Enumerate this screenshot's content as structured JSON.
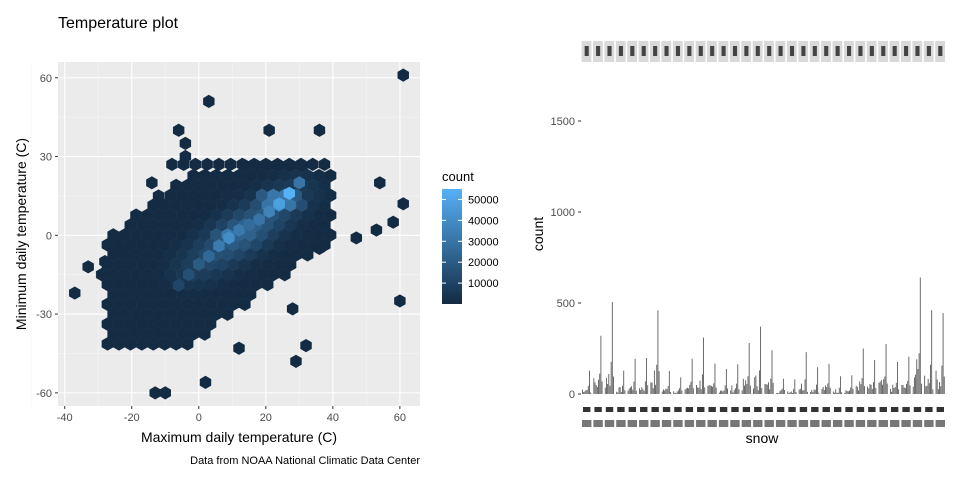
{
  "chart_data": [
    {
      "type": "heatmap",
      "subtype": "hexbin",
      "title": "Temperature plot",
      "xlabel": "Maximum daily temperature (C)",
      "ylabel": "Minimum daily temperature (C)",
      "caption": "Data from NOAA National Climatic Data Center",
      "xlim": [
        -42,
        66
      ],
      "ylim": [
        -65,
        66
      ],
      "x_ticks": [
        -40,
        -20,
        0,
        20,
        40,
        60
      ],
      "y_ticks": [
        -60,
        -30,
        0,
        30,
        60
      ],
      "grid": true,
      "panel_background": "#ebebeb",
      "legend": {
        "title": "count",
        "placement": "right",
        "ticks": [
          10000,
          20000,
          30000,
          40000,
          50000
        ],
        "range": [
          1,
          55000
        ],
        "color_low": "#132b43",
        "color_high": "#56b1f7"
      },
      "points": [
        {
          "x": 61,
          "y": 61,
          "c": 1
        },
        {
          "x": 3,
          "y": 51,
          "c": 1
        },
        {
          "x": -6,
          "y": 40,
          "c": 1
        },
        {
          "x": -4,
          "y": 35,
          "c": 1
        },
        {
          "x": 21,
          "y": 40,
          "c": 1
        },
        {
          "x": 36,
          "y": 40,
          "c": 1
        },
        {
          "x": -4,
          "y": 30,
          "c": 1
        },
        {
          "x": 54,
          "y": 20,
          "c": 1
        },
        {
          "x": 61,
          "y": 12,
          "c": 1
        },
        {
          "x": 58,
          "y": 5,
          "c": 1
        },
        {
          "x": 53,
          "y": 2,
          "c": 1
        },
        {
          "x": 47,
          "y": -1,
          "c": 1
        },
        {
          "x": 36,
          "y": -5,
          "c": 1
        },
        {
          "x": -37,
          "y": -22,
          "c": 1
        },
        {
          "x": -33,
          "y": -12,
          "c": 1
        },
        {
          "x": -28,
          "y": -10,
          "c": 1
        },
        {
          "x": -23,
          "y": -6,
          "c": 1
        },
        {
          "x": -14,
          "y": 20,
          "c": 1
        },
        {
          "x": -12,
          "y": 15,
          "c": 1
        },
        {
          "x": 60,
          "y": -25,
          "c": 1
        },
        {
          "x": 28,
          "y": -28,
          "c": 1
        },
        {
          "x": 32,
          "y": -42,
          "c": 1
        },
        {
          "x": 29,
          "y": -48,
          "c": 1
        },
        {
          "x": 12,
          "y": -43,
          "c": 1
        },
        {
          "x": 2,
          "y": -56,
          "c": 1
        },
        {
          "x": -13,
          "y": -60,
          "c": 1
        },
        {
          "x": -10,
          "y": -60,
          "c": 1
        },
        {
          "x": 27,
          "y": 16,
          "c": 55000
        },
        {
          "x": 24,
          "y": 12,
          "c": 48000
        },
        {
          "x": 21,
          "y": 9,
          "c": 36000
        },
        {
          "x": 18,
          "y": 6,
          "c": 30000
        },
        {
          "x": 12,
          "y": 2,
          "c": 32000
        },
        {
          "x": 9,
          "y": -1,
          "c": 40000
        },
        {
          "x": 6,
          "y": -4,
          "c": 33000
        },
        {
          "x": 3,
          "y": -8,
          "c": 25000
        },
        {
          "x": 0,
          "y": -11,
          "c": 20000
        },
        {
          "x": -3,
          "y": -15,
          "c": 15000
        },
        {
          "x": -6,
          "y": -19,
          "c": 11000
        },
        {
          "x": 15,
          "y": 4,
          "c": 27000
        },
        {
          "x": 30,
          "y": 20,
          "c": 30000
        }
      ],
      "background_region": {
        "description": "dense region",
        "note": ""
      }
    },
    {
      "type": "bar",
      "subtype": "histogram",
      "xlabel": "snow",
      "ylabel": "count",
      "ylim": [
        0,
        1750
      ],
      "y_ticks": [
        0,
        500,
        1000,
        1500
      ],
      "grid": false,
      "facet_panels": 32,
      "bar_color": "#595959",
      "facet_strip_color": "#d9d9d9",
      "facet_tallest": [
        {
          "panel": 1,
          "value": 320
        },
        {
          "panel": 2,
          "value": 505
        },
        {
          "panel": 6,
          "value": 460
        },
        {
          "panel": 10,
          "value": 310
        },
        {
          "panel": 14,
          "value": 280
        },
        {
          "panel": 15,
          "value": 370
        },
        {
          "panel": 16,
          "value": 240
        },
        {
          "panel": 19,
          "value": 230
        },
        {
          "panel": 24,
          "value": 250
        },
        {
          "panel": 26,
          "value": 275
        },
        {
          "panel": 28,
          "value": 205
        },
        {
          "panel": 29,
          "value": 640
        },
        {
          "panel": 30,
          "value": 460
        },
        {
          "panel": 31,
          "value": 445
        }
      ]
    }
  ]
}
